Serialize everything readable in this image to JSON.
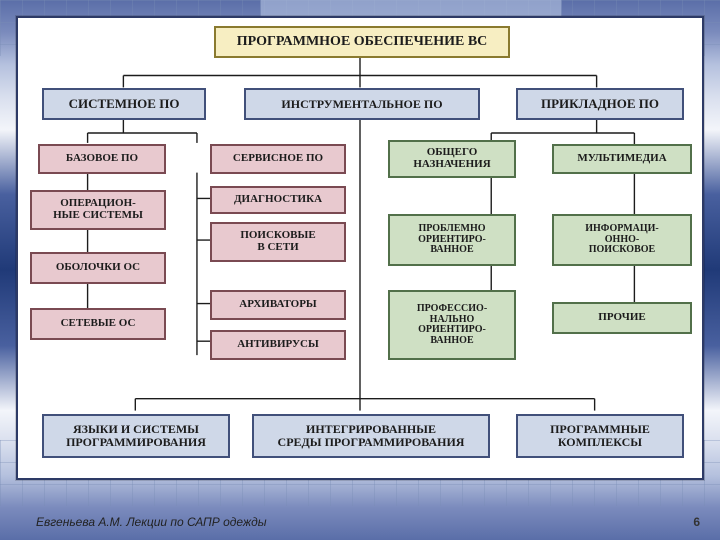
{
  "colors": {
    "yellow_fill": "#f7eec2",
    "yellow_border": "#8a7a2f",
    "blue_fill": "#cfd8e8",
    "blue_border": "#41507a",
    "pink_fill": "#e8c9cf",
    "pink_border": "#7a4a52",
    "green_fill": "#cfe0c4",
    "green_border": "#52704a",
    "text": "#1c1c1c",
    "connector": "#1c1c1c"
  },
  "boxes": {
    "root": {
      "text": "ПРОГРАММНОЕ ОБЕСПЕЧЕНИЕ ВС",
      "font": 14
    },
    "sys": {
      "text": "СИСТЕМНОЕ  ПО",
      "font": 13
    },
    "instr": {
      "text": "ИНСТРУМЕНТАЛЬНОЕ ПО",
      "font": 12
    },
    "app": {
      "text": "ПРИКЛАДНОЕ  ПО",
      "font": 13
    },
    "base": {
      "text": "БАЗОВОЕ ПО",
      "font": 11
    },
    "service": {
      "text": "СЕРВИСНОЕ ПО",
      "font": 11
    },
    "os": {
      "text": "ОПЕРАЦИОН-\nНЫЕ СИСТЕМЫ",
      "font": 11
    },
    "diag": {
      "text": "ДИАГНОСТИКА",
      "font": 11
    },
    "search_net": {
      "text": "ПОИСКОВЫЕ\nВ СЕТИ",
      "font": 11
    },
    "shell": {
      "text": "ОБОЛОЧКИ ОС",
      "font": 11
    },
    "arch": {
      "text": "АРХИВАТОРЫ",
      "font": 11
    },
    "netos": {
      "text": "СЕТЕВЫЕ ОС",
      "font": 11
    },
    "antiv": {
      "text": "АНТИВИРУСЫ",
      "font": 11
    },
    "gen": {
      "text": "ОБЩЕГО\nНАЗНАЧЕНИЯ",
      "font": 11
    },
    "mm": {
      "text": "МУЛЬТИМЕДИА",
      "font": 11
    },
    "prob": {
      "text": "ПРОБЛЕМНО\nОРИЕНТИРО-\nВАННОЕ",
      "font": 10
    },
    "info": {
      "text": "ИНФОРМАЦИ-\nОННО-\nПОИСКОВОЕ",
      "font": 10
    },
    "prof": {
      "text": "ПРОФЕССИО-\nНАЛЬНО\nОРИЕНТИРО-\nВАННОЕ",
      "font": 10
    },
    "other": {
      "text": "ПРОЧИЕ",
      "font": 11
    },
    "lang": {
      "text": "ЯЗЫКИ И СИСТЕМЫ\nПРОГРАММИРОВАНИЯ",
      "font": 12
    },
    "ide": {
      "text": "ИНТЕГРИРОВАННЫЕ\nСРЕДЫ ПРОГРАММИРОВАНИЯ",
      "font": 12
    },
    "complex": {
      "text": "ПРОГРАММНЫЕ\nКОМПЛЕКСЫ",
      "font": 12
    }
  },
  "footer": {
    "author": "Евгеньева А.М. Лекции по САПР одежды",
    "page": "6"
  }
}
